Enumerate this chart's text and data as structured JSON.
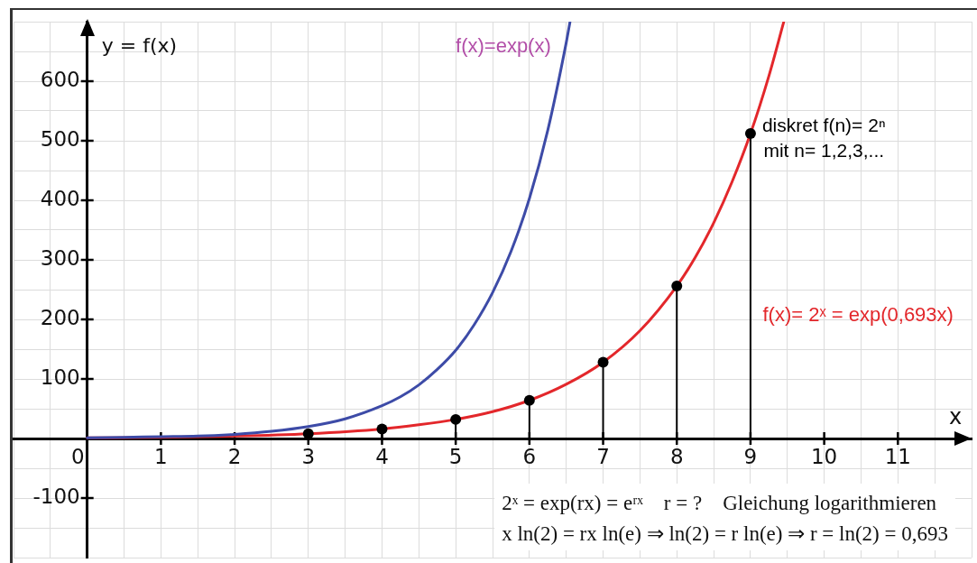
{
  "chart_data": {
    "type": "line",
    "xlabel": "x",
    "ylabel": "y = f(x)",
    "xlim": [
      -1,
      12
    ],
    "ylim": [
      -200,
      700
    ],
    "xticks": [
      {
        "value": -1,
        "label": null
      },
      {
        "value": -0.5,
        "label": null
      },
      {
        "value": 0,
        "label": "0"
      },
      {
        "value": 0.5,
        "label": null
      },
      1,
      {
        "value": 1.5,
        "label": null
      },
      2,
      {
        "value": 2.5,
        "label": null
      },
      3,
      {
        "value": 3.5,
        "label": null
      },
      4,
      {
        "value": 4.5,
        "label": null
      },
      5,
      {
        "value": 5.5,
        "label": null
      },
      6,
      {
        "value": 6.5,
        "label": null
      },
      7,
      {
        "value": 7.5,
        "label": null
      },
      8,
      {
        "value": 8.5,
        "label": null
      },
      9,
      {
        "value": 9.5,
        "label": null
      },
      10,
      {
        "value": 10.5,
        "label": null
      },
      11,
      {
        "value": 11.5,
        "label": null
      },
      {
        "value": 12,
        "label": null
      }
    ],
    "yticks": [
      {
        "value": -200,
        "label": null
      },
      {
        "value": -150,
        "label": null
      },
      -100,
      {
        "value": -50,
        "label": null
      },
      {
        "value": 0,
        "label": null
      },
      {
        "value": 50,
        "label": null
      },
      100,
      {
        "value": 150,
        "label": null
      },
      200,
      {
        "value": 250,
        "label": null
      },
      300,
      {
        "value": 350,
        "label": null
      },
      400,
      {
        "value": 450,
        "label": null
      },
      500,
      {
        "value": 550,
        "label": null
      },
      600,
      {
        "value": 650,
        "label": null
      },
      {
        "value": 700,
        "label": null
      }
    ],
    "grid": true,
    "series": [
      {
        "name": "f(x)=exp(x)",
        "color": "#3d4ba7",
        "x": [
          0,
          0.5,
          1,
          1.5,
          2,
          2.5,
          3,
          3.5,
          4,
          4.25,
          4.5,
          4.75,
          5,
          5.25,
          5.5,
          5.75,
          6,
          6.25,
          6.5,
          6.55
        ],
        "values": [
          1,
          2,
          3,
          4,
          7,
          12,
          20,
          33,
          55,
          70,
          90,
          116,
          148,
          191,
          245,
          314,
          403,
          518,
          665,
          699
        ]
      },
      {
        "name": "f(x)= 2ˣ = exp(0,693x)",
        "color": "#e3272b",
        "x": [
          0,
          1,
          2,
          3,
          4,
          4.5,
          5,
          5.5,
          6,
          6.5,
          7,
          7.5,
          8,
          8.25,
          8.5,
          8.75,
          9,
          9.25,
          9.45
        ],
        "values": [
          1,
          2,
          4,
          8,
          16,
          23,
          32,
          45,
          64,
          91,
          128,
          181,
          256,
          304,
          362,
          431,
          512,
          609,
          699
        ]
      },
      {
        "type": "lollipop",
        "name": "diskret f(n)= 2ⁿ\nmit n= 1,2,3,...",
        "color": "#000000",
        "marker": "circle",
        "x": [
          3,
          4,
          5,
          6,
          7,
          8,
          9
        ],
        "values": [
          8,
          16,
          32,
          64,
          128,
          256,
          512
        ]
      }
    ],
    "annotations": [
      "2ˣ = exp(rx) = eʳˣ    r = ?    Gleichung logarithmieren",
      "x ln(2) = rx ln(e) ⇒ ln(2) = r ln(e) ⇒ r = ln(2) = 0,693"
    ]
  }
}
